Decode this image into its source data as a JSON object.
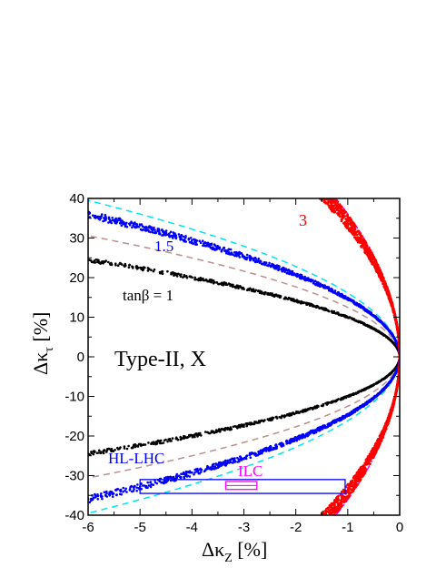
{
  "chart_data": {
    "type": "scatter",
    "xlim": [
      -6,
      0
    ],
    "ylim": [
      -40,
      40
    ],
    "xticks": [
      -6,
      -5,
      -4,
      -3,
      -2,
      -1,
      0
    ],
    "yticks": [
      -40,
      -30,
      -20,
      -10,
      0,
      10,
      20,
      30,
      40
    ],
    "xlabel": {
      "main": "Δκ",
      "sub": "Z",
      "unit": " [%]"
    },
    "ylabel": {
      "main": "Δκ",
      "sub": "τ",
      "unit": " [%]"
    },
    "series": [
      {
        "name": "tanβ = 1",
        "color": "#000000",
        "curvature": 1.0,
        "width": 0.08
      },
      {
        "name": "1.5",
        "color": "#0000ff",
        "curvature": 2.15,
        "width": 0.1
      },
      {
        "name": "3",
        "color": "#ff0000",
        "curvature": 11.5,
        "width": 0.22
      }
    ],
    "lines": [
      {
        "color": "#bc8f8f",
        "dash": "7,5",
        "curvature": 1.56
      },
      {
        "color": "#00e5ee",
        "dash": "7,5",
        "curvature": 2.6
      },
      {
        "color": "#ff00ff",
        "dash": "9,4,2,4",
        "curvature": 13.0
      }
    ],
    "annotations": {
      "type_label": "Type-II, X",
      "tan1": "tanβ = 1",
      "tan15": "1.5",
      "tan3": "3",
      "hl_lhc": "HL-LHC",
      "ilc": "ILC"
    },
    "boxes": [
      {
        "name": "HL-LHC",
        "color": "#0000ff",
        "x": [
          -5.0,
          -1.05
        ],
        "y": [
          -34.5,
          -31.0
        ]
      },
      {
        "name": "ILC",
        "color": "#ff00ff",
        "x": [
          -3.35,
          -2.75
        ],
        "y": [
          -33.5,
          -31.5
        ]
      }
    ]
  }
}
